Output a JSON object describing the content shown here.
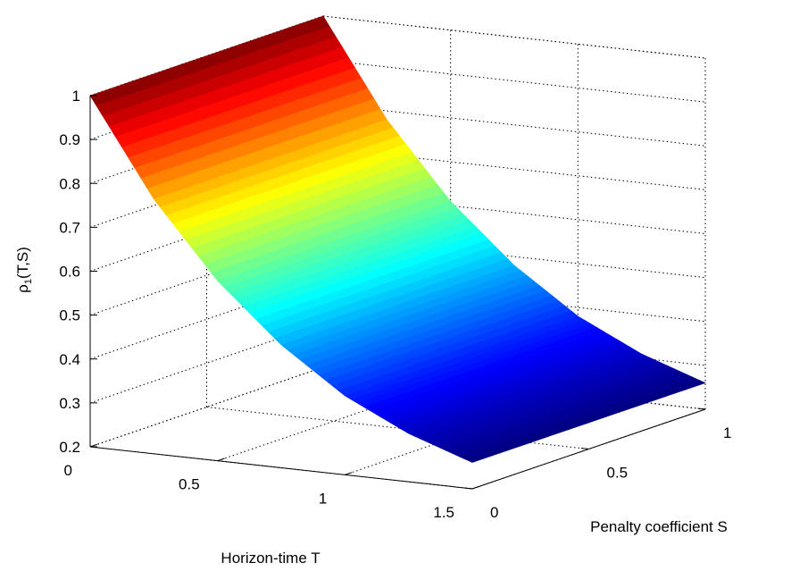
{
  "chart_data": {
    "type": "surface",
    "title": "",
    "xlabel": "Horizon-time T",
    "ylabel": "Penalty coefficient S",
    "zlabel_base": "ρ",
    "zlabel_sub": "1",
    "zlabel_rest": "(T,S)",
    "xlim": [
      0,
      1.5
    ],
    "ylim": [
      0,
      1
    ],
    "zlim": [
      0.2,
      1
    ],
    "x_ticks": [
      "0",
      "0.5",
      "1",
      "1.5"
    ],
    "y_ticks": [
      "0",
      "0.5",
      "1"
    ],
    "z_ticks": [
      "0.2",
      "0.3",
      "0.4",
      "0.5",
      "0.6",
      "0.7",
      "0.8",
      "0.9",
      "1"
    ],
    "colormap": "jet",
    "grid": true,
    "surface_profile": {
      "description_values": "rho1 decreases with T, nearly independent of S",
      "T": [
        0,
        0.25,
        0.5,
        0.75,
        1.0,
        1.25,
        1.5
      ],
      "rho": [
        1.0,
        0.78,
        0.61,
        0.48,
        0.38,
        0.31,
        0.26
      ]
    }
  }
}
